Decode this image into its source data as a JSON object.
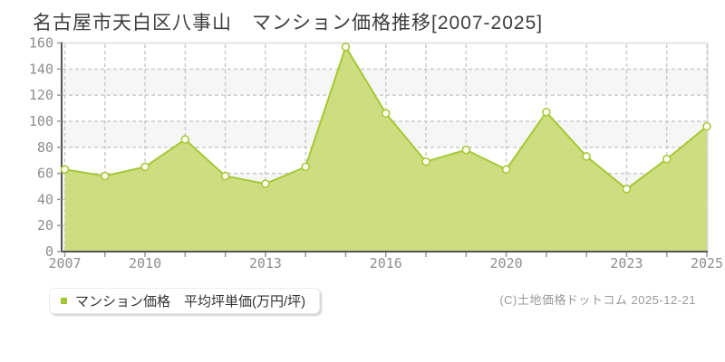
{
  "title": "名古屋市天白区八事山　マンション価格推移[2007-2025]",
  "legend": {
    "swatch_color": "#a3c52f"
  },
  "footer": {
    "text": "(C)土地価格ドットコム 2025-12-21"
  },
  "chart_data": {
    "type": "area",
    "title": "名古屋市天白区八事山　マンション価格推移[2007-2025]",
    "series": [
      {
        "name": "マンション価格　平均坪単価(万円/坪)",
        "values": [
          63,
          58,
          65,
          86,
          58,
          52,
          65,
          157,
          106,
          69,
          78,
          63,
          107,
          73,
          48,
          71,
          96
        ]
      }
    ],
    "num_points": 17,
    "x_tick_labels": [
      {
        "index": 0,
        "label": "2007"
      },
      {
        "index": 2,
        "label": "2010"
      },
      {
        "index": 5,
        "label": "2013"
      },
      {
        "index": 8,
        "label": "2016"
      },
      {
        "index": 11,
        "label": "2020"
      },
      {
        "index": 14,
        "label": "2023"
      },
      {
        "index": 16,
        "label": "2025"
      }
    ],
    "y_axis": {
      "min": 0,
      "max": 160,
      "step": 20
    },
    "xlabel": "",
    "ylabel": "",
    "grid": "dashed",
    "legend_position": "bottom-left",
    "colors": {
      "line": "#a7c735",
      "fill": "#cedd80",
      "marker_fill": "#fcfdf0",
      "band_alt": "#f6f6f6",
      "gridline": "#cccccc",
      "axis": "#555555",
      "tick": "#999999",
      "tick_label": "#8e8e8e"
    }
  }
}
